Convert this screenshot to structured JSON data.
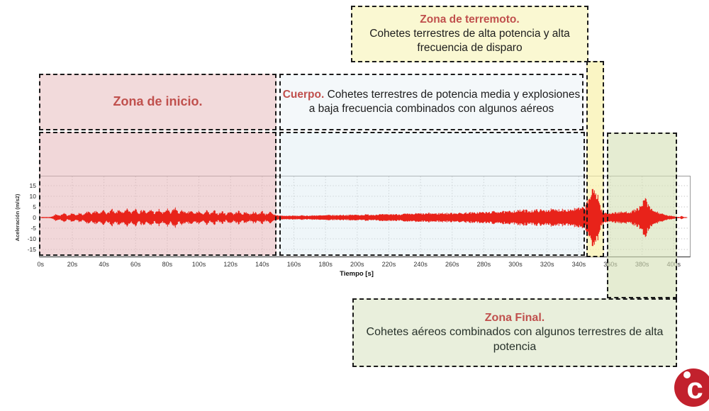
{
  "colors": {
    "zone_yellow": "#FAF8D2",
    "zone_pink": "#F2DADB",
    "zone_body": "#F4F8FA",
    "zone_green": "#E9EFDC",
    "title_red": "#C0504D",
    "wave_red": "#E8231A",
    "border_dark": "#1A1A1A",
    "logo_red": "#C2212D"
  },
  "boxes": {
    "terremoto": {
      "title": "Zona de terremoto.",
      "body": "Cohetes terrestres de alta potencia y alta frecuencia de disparo"
    },
    "inicio": {
      "title": "Zona de inicio."
    },
    "cuerpo": {
      "title": "Cuerpo.",
      "body": "Cohetes terrestres de potencia media y explosiones a baja frecuencia combinados con algunos aéreos"
    },
    "final": {
      "title": "Zona Final.",
      "body": "Cohetes aéreos combinados con algunos terrestres de alta potencia"
    }
  },
  "logo": {
    "letter": "c"
  },
  "chart_data": {
    "type": "line",
    "title": "",
    "xlabel": "Tiempo [s]",
    "ylabel": "Aceleración (m/s2)",
    "xlim": [
      0,
      410
    ],
    "ylim": [
      -19,
      19
    ],
    "grid": true,
    "xticks": [
      "0s",
      "20s",
      "40s",
      "60s",
      "80s",
      "100s",
      "120s",
      "140s",
      "160s",
      "180s",
      "200s",
      "220s",
      "240s",
      "260s",
      "280s",
      "300s",
      "320s",
      "340s",
      "360s",
      "380s",
      "400s"
    ],
    "yticks": [
      15,
      10,
      5,
      0,
      -5,
      -10,
      -15
    ],
    "zones": [
      {
        "name": "Zona de inicio.",
        "t_range": [
          0,
          150
        ]
      },
      {
        "name": "Cuerpo.",
        "t_range": [
          150,
          344
        ]
      },
      {
        "name": "Zona de terremoto.",
        "t_range": [
          344,
          356
        ]
      },
      {
        "name": "Zona Final.",
        "t_range": [
          358,
          402
        ]
      }
    ],
    "series": [
      {
        "name": "Aceleración",
        "color": "#E8231A",
        "envelope": [
          [
            0,
            0.25
          ],
          [
            6,
            0.3
          ],
          [
            8,
            0.8
          ],
          [
            10,
            2.0
          ],
          [
            12,
            1.0
          ],
          [
            15,
            2.2
          ],
          [
            17,
            1.1
          ],
          [
            20,
            2.4
          ],
          [
            22,
            1.2
          ],
          [
            25,
            2.6
          ],
          [
            27,
            1.3
          ],
          [
            30,
            3.4
          ],
          [
            32,
            1.6
          ],
          [
            35,
            3.8
          ],
          [
            37,
            1.8
          ],
          [
            40,
            4.2
          ],
          [
            42,
            2.0
          ],
          [
            45,
            4.4
          ],
          [
            47,
            2.1
          ],
          [
            50,
            4.3
          ],
          [
            52,
            2.2
          ],
          [
            55,
            4.6
          ],
          [
            57,
            2.3
          ],
          [
            60,
            5.3
          ],
          [
            62,
            2.4
          ],
          [
            65,
            4.5
          ],
          [
            67,
            2.2
          ],
          [
            70,
            4.4
          ],
          [
            72,
            2.2
          ],
          [
            75,
            4.3
          ],
          [
            77,
            2.1
          ],
          [
            80,
            4.6
          ],
          [
            82,
            2.2
          ],
          [
            85,
            5.5
          ],
          [
            87,
            2.4
          ],
          [
            90,
            4.0
          ],
          [
            92,
            2.0
          ],
          [
            95,
            3.7
          ],
          [
            97,
            1.9
          ],
          [
            100,
            3.5
          ],
          [
            102,
            1.7
          ],
          [
            105,
            3.7
          ],
          [
            107,
            1.8
          ],
          [
            110,
            3.6
          ],
          [
            112,
            1.8
          ],
          [
            115,
            3.3
          ],
          [
            117,
            1.6
          ],
          [
            120,
            3.5
          ],
          [
            122,
            1.7
          ],
          [
            125,
            3.6
          ],
          [
            127,
            1.8
          ],
          [
            130,
            3.1
          ],
          [
            132,
            1.6
          ],
          [
            135,
            3.2
          ],
          [
            137,
            1.6
          ],
          [
            140,
            3.4
          ],
          [
            142,
            1.7
          ],
          [
            145,
            3.0
          ],
          [
            147,
            1.5
          ],
          [
            150,
            1.2
          ],
          [
            154,
            0.9
          ],
          [
            158,
            1.0
          ],
          [
            162,
            0.95
          ],
          [
            166,
            1.1
          ],
          [
            170,
            1.0
          ],
          [
            174,
            1.2
          ],
          [
            178,
            1.1
          ],
          [
            182,
            1.3
          ],
          [
            186,
            1.2
          ],
          [
            190,
            1.4
          ],
          [
            194,
            1.3
          ],
          [
            198,
            1.5
          ],
          [
            202,
            1.4
          ],
          [
            206,
            1.6
          ],
          [
            210,
            1.5
          ],
          [
            214,
            1.7
          ],
          [
            218,
            1.6
          ],
          [
            222,
            1.8
          ],
          [
            226,
            1.7
          ],
          [
            230,
            2.0
          ],
          [
            234,
            1.8
          ],
          [
            238,
            2.2
          ],
          [
            242,
            2.0
          ],
          [
            246,
            2.3
          ],
          [
            250,
            2.1
          ],
          [
            254,
            2.4
          ],
          [
            258,
            2.2
          ],
          [
            262,
            2.5
          ],
          [
            266,
            2.3
          ],
          [
            270,
            2.7
          ],
          [
            274,
            2.5
          ],
          [
            278,
            2.9
          ],
          [
            282,
            2.7
          ],
          [
            286,
            3.1
          ],
          [
            290,
            3.3
          ],
          [
            294,
            3.0
          ],
          [
            298,
            3.5
          ],
          [
            302,
            3.7
          ],
          [
            306,
            3.9
          ],
          [
            310,
            3.6
          ],
          [
            314,
            4.1
          ],
          [
            318,
            3.8
          ],
          [
            322,
            4.3
          ],
          [
            326,
            4.0
          ],
          [
            330,
            4.5
          ],
          [
            334,
            4.2
          ],
          [
            338,
            4.7
          ],
          [
            342,
            4.9
          ],
          [
            344,
            5.6
          ],
          [
            346,
            9.5
          ],
          [
            348,
            13.5
          ],
          [
            350,
            14.2
          ],
          [
            352,
            12.5
          ],
          [
            353,
            8.0
          ],
          [
            354,
            4.5
          ],
          [
            356,
            2.6
          ],
          [
            360,
            2.4
          ],
          [
            364,
            2.7
          ],
          [
            368,
            2.9
          ],
          [
            372,
            3.1
          ],
          [
            374,
            3.5
          ],
          [
            376,
            4.2
          ],
          [
            378,
            5.2
          ],
          [
            380,
            6.0
          ],
          [
            381,
            9.0
          ],
          [
            382,
            11.0
          ],
          [
            383,
            8.5
          ],
          [
            384,
            6.0
          ],
          [
            386,
            4.3
          ],
          [
            388,
            3.4
          ],
          [
            390,
            2.8
          ],
          [
            392,
            2.2
          ],
          [
            394,
            1.5
          ],
          [
            396,
            1.1
          ],
          [
            398,
            0.9
          ],
          [
            400,
            0.7
          ],
          [
            402,
            0.4
          ],
          [
            404,
            0.3
          ],
          [
            405,
            1.2
          ],
          [
            406,
            0.3
          ],
          [
            408,
            0.2
          ]
        ]
      }
    ]
  }
}
